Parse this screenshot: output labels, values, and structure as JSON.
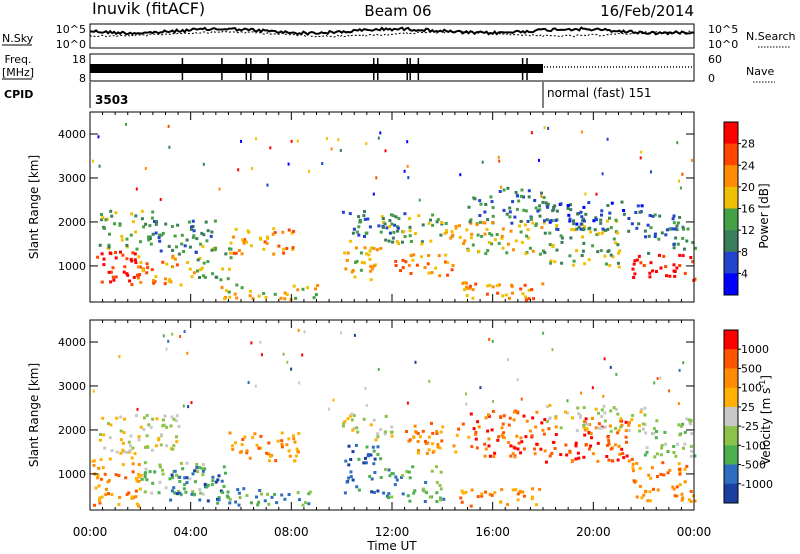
{
  "header": {
    "station": "Inuvik (fitACF)",
    "beam": "Beam 06",
    "date": "16/Feb/2014"
  },
  "strip_noise": {
    "left_label": "N.Sky",
    "right_label": "N.Search",
    "left_ticks": [
      "10^5",
      "10^0"
    ],
    "right_ticks": [
      "10^5",
      "10^0"
    ]
  },
  "strip_freq": {
    "left_label_1": "Freq.",
    "left_label_2": "[MHz]",
    "right_label": "Nave",
    "left_ticks": [
      "18",
      "8"
    ],
    "right_ticks": [
      "60",
      "0"
    ]
  },
  "cpid": {
    "label": "CPID",
    "segment1": "3503",
    "segment2": "normal (fast) 151",
    "switch_hour": 18.0
  },
  "colors": {
    "power": [
      "#0000ff",
      "#2244cc",
      "#3a7d5a",
      "#46a046",
      "#f0c000",
      "#ff8c00",
      "#ff4500",
      "#ff0000"
    ],
    "velocity": [
      "#1a3fa0",
      "#2d6ec0",
      "#4caf50",
      "#8bc34a",
      "#c8c8c8",
      "#ffb000",
      "#ff8c00",
      "#ff5500",
      "#ff0000"
    ]
  },
  "panels": {
    "power": {
      "ylabel": "Slant Range [km]",
      "cbar_label": "Power [dB]",
      "cbar_ticks": [
        "28",
        "24",
        "20",
        "16",
        "12",
        "8",
        "4"
      ]
    },
    "velocity": {
      "ylabel": "Slant Range [km]",
      "cbar_label_main": "Velocity [m s",
      "cbar_label_sup": "-1",
      "cbar_label_end": "]",
      "cbar_ticks": [
        "1000",
        "500",
        "100",
        "25",
        "-25",
        "-100",
        "-500",
        "-1000"
      ]
    },
    "xlabel": "Time UT"
  },
  "chart_data": {
    "type": "heatmap",
    "x_ticks": [
      "00:00",
      "04:00",
      "08:00",
      "12:00",
      "16:00",
      "20:00",
      "00:00"
    ],
    "xlim": [
      0,
      24
    ],
    "y_ticks": [
      "1000",
      "2000",
      "3000",
      "4000"
    ],
    "ylim": [
      180,
      4500
    ],
    "power_blobs": [
      {
        "t0": 0.0,
        "t1": 1.8,
        "r0": 600,
        "r1": 1400,
        "level": 7
      },
      {
        "t0": 1.8,
        "t1": 4.2,
        "r0": 600,
        "r1": 1300,
        "level": 5
      },
      {
        "t0": 0.3,
        "t1": 2.5,
        "r0": 1400,
        "r1": 2300,
        "level": 3
      },
      {
        "t0": 2.5,
        "t1": 5.0,
        "r0": 1300,
        "r1": 2100,
        "level": 2
      },
      {
        "t0": 4.2,
        "t1": 5.6,
        "r0": 700,
        "r1": 1600,
        "level": 3
      },
      {
        "t0": 5.6,
        "t1": 8.2,
        "r0": 1300,
        "r1": 1900,
        "level": 5
      },
      {
        "t0": 5.0,
        "t1": 9.0,
        "r0": 250,
        "r1": 600,
        "level": 4
      },
      {
        "t0": 10.0,
        "t1": 11.5,
        "r0": 700,
        "r1": 1600,
        "level": 4
      },
      {
        "t0": 10.0,
        "t1": 12.5,
        "r0": 1700,
        "r1": 2300,
        "level": 2
      },
      {
        "t0": 11.5,
        "t1": 14.0,
        "r0": 1500,
        "r1": 2200,
        "level": 3
      },
      {
        "t0": 12.0,
        "t1": 14.5,
        "r0": 800,
        "r1": 1300,
        "level": 5
      },
      {
        "t0": 14.0,
        "t1": 18.0,
        "r0": 1300,
        "r1": 2100,
        "level": 4
      },
      {
        "t0": 14.5,
        "t1": 18.0,
        "r0": 250,
        "r1": 700,
        "level": 5
      },
      {
        "t0": 15.0,
        "t1": 18.0,
        "r0": 2000,
        "r1": 2800,
        "level": 2
      },
      {
        "t0": 18.0,
        "t1": 21.0,
        "r0": 1000,
        "r1": 2100,
        "level": 3
      },
      {
        "t0": 18.0,
        "t1": 22.0,
        "r0": 1800,
        "r1": 2500,
        "level": 1
      },
      {
        "t0": 21.5,
        "t1": 24.0,
        "r0": 700,
        "r1": 1300,
        "level": 7
      },
      {
        "t0": 22.0,
        "t1": 24.0,
        "r0": 1300,
        "r1": 2200,
        "level": 2
      }
    ],
    "velocity_blobs": [
      {
        "t0": 0.0,
        "t1": 2.0,
        "r0": 300,
        "r1": 1500,
        "level": 6
      },
      {
        "t0": 0.2,
        "t1": 3.5,
        "r0": 1500,
        "r1": 2400,
        "level": 4
      },
      {
        "t0": 2.0,
        "t1": 4.5,
        "r0": 500,
        "r1": 1300,
        "level": 3
      },
      {
        "t0": 3.0,
        "t1": 5.5,
        "r0": 400,
        "r1": 1200,
        "level": 1
      },
      {
        "t0": 5.5,
        "t1": 8.3,
        "r0": 1300,
        "r1": 2000,
        "level": 6
      },
      {
        "t0": 5.0,
        "t1": 9.0,
        "r0": 300,
        "r1": 700,
        "level": 2
      },
      {
        "t0": 10.0,
        "t1": 11.5,
        "r0": 600,
        "r1": 1700,
        "level": 1
      },
      {
        "t0": 10.0,
        "t1": 12.0,
        "r0": 1800,
        "r1": 2400,
        "level": 4
      },
      {
        "t0": 11.5,
        "t1": 14.0,
        "r0": 400,
        "r1": 1200,
        "level": 2
      },
      {
        "t0": 12.5,
        "t1": 15.0,
        "r0": 1500,
        "r1": 2200,
        "level": 6
      },
      {
        "t0": 15.0,
        "t1": 18.0,
        "r0": 1400,
        "r1": 2500,
        "level": 7
      },
      {
        "t0": 14.5,
        "t1": 18.0,
        "r0": 300,
        "r1": 700,
        "level": 6
      },
      {
        "t0": 18.0,
        "t1": 21.5,
        "r0": 1300,
        "r1": 2300,
        "level": 7
      },
      {
        "t0": 18.0,
        "t1": 22.0,
        "r0": 2000,
        "r1": 2600,
        "level": 4
      },
      {
        "t0": 21.5,
        "t1": 24.0,
        "r0": 400,
        "r1": 1300,
        "level": 6
      },
      {
        "t0": 22.0,
        "t1": 24.0,
        "r0": 1400,
        "r1": 2300,
        "level": 3
      }
    ]
  }
}
